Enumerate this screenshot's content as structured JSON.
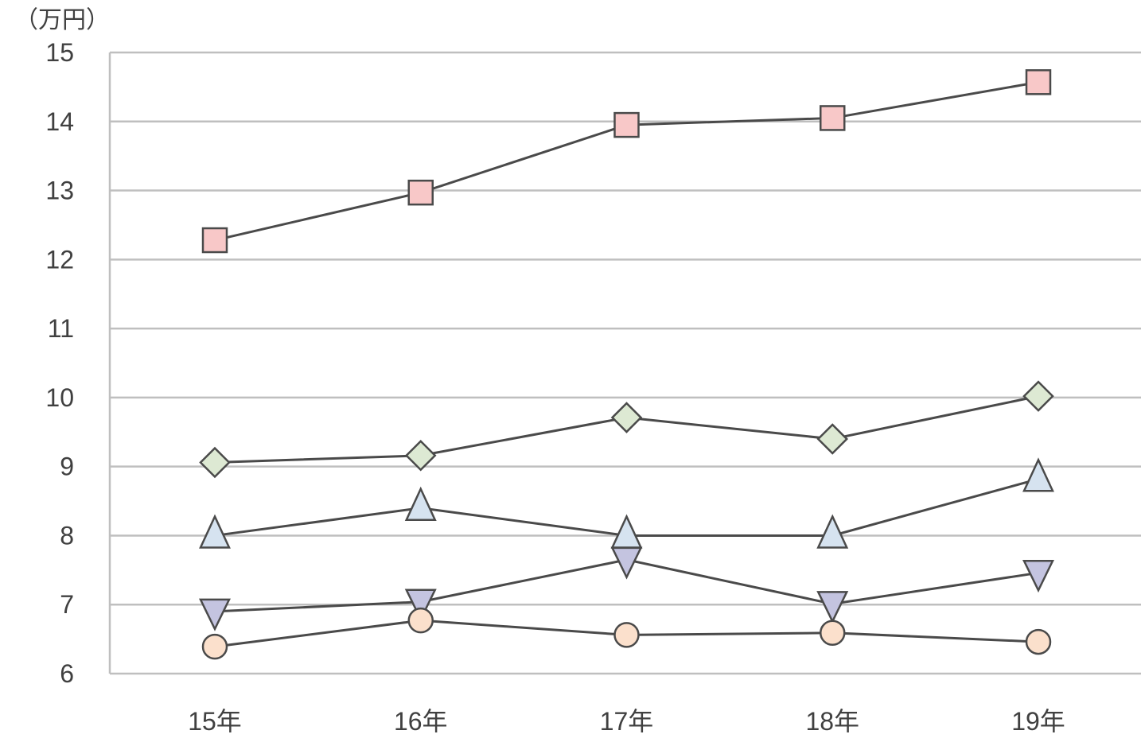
{
  "chart_data": {
    "type": "line",
    "unit_label": "（万円）",
    "categories": [
      "15年",
      "16年",
      "17年",
      "18年",
      "19年"
    ],
    "ylim": [
      6,
      15
    ],
    "yticks": [
      6,
      7,
      8,
      9,
      10,
      11,
      12,
      13,
      14,
      15
    ],
    "grid": true,
    "series": [
      {
        "marker": "square",
        "fill": "#f8c8c8",
        "values": [
          12.28,
          12.97,
          13.95,
          14.05,
          14.57
        ]
      },
      {
        "marker": "diamond",
        "fill": "#dde9d3",
        "values": [
          9.06,
          9.16,
          9.71,
          9.4,
          10.02
        ]
      },
      {
        "marker": "triangle-up",
        "fill": "#d6e3f0",
        "values": [
          8.0,
          8.4,
          8.0,
          8.0,
          8.82
        ]
      },
      {
        "marker": "triangle-down",
        "fill": "#c4c4e0",
        "values": [
          6.9,
          7.04,
          7.65,
          7.01,
          7.46
        ]
      },
      {
        "marker": "circle",
        "fill": "#fbe0cc",
        "values": [
          6.39,
          6.77,
          6.56,
          6.59,
          6.46
        ]
      }
    ]
  }
}
